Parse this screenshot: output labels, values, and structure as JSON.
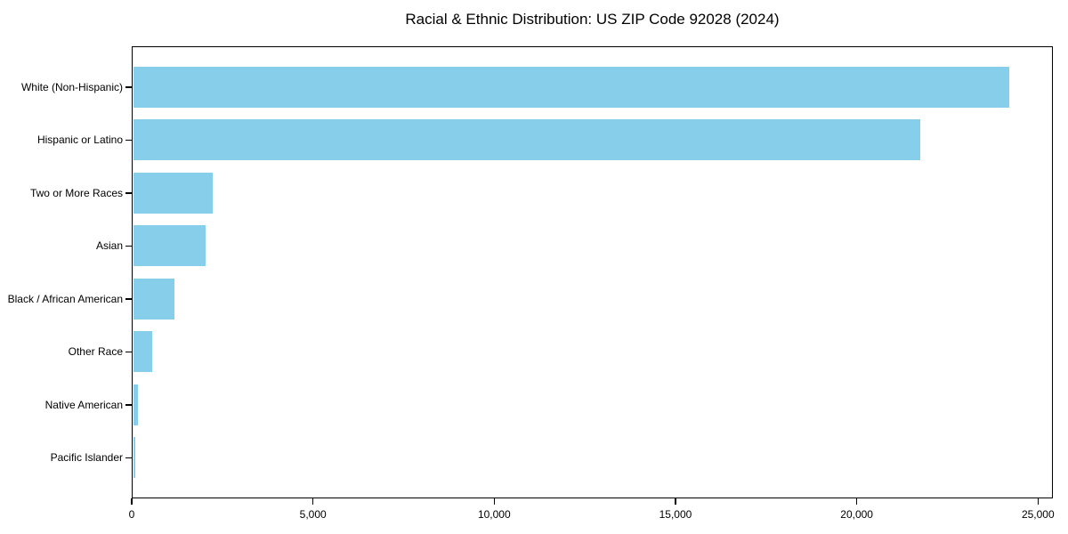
{
  "chart_data": {
    "type": "bar",
    "orientation": "horizontal",
    "title": "Racial & Ethnic Distribution: US ZIP Code 92028 (2024)",
    "categories": [
      "White (Non-Hispanic)",
      "Hispanic or Latino",
      "Two or More Races",
      "Asian",
      "Black / African American",
      "Other Race",
      "Native American",
      "Pacific Islander"
    ],
    "values": [
      24200,
      21750,
      2230,
      2030,
      1180,
      560,
      180,
      90
    ],
    "xlabel": "",
    "ylabel": "",
    "xlim": [
      0,
      25410
    ],
    "xticks": [
      0,
      5000,
      10000,
      15000,
      20000,
      25000
    ],
    "xtick_labels": [
      "0",
      "5,000",
      "10,000",
      "15,000",
      "20,000",
      "25,000"
    ],
    "bar_color": "#87CEEB",
    "text_color": "#000000",
    "grid": false,
    "legend_position": "none",
    "frame": "full-box"
  }
}
